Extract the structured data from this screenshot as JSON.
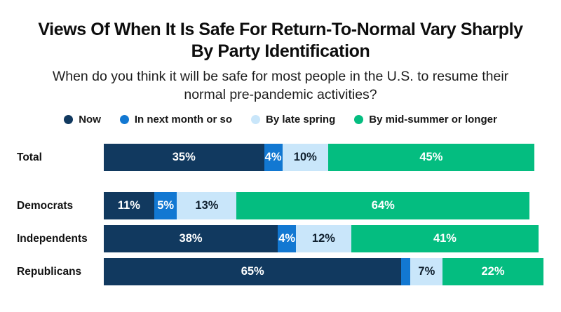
{
  "header": {
    "title_lines": [
      "Views Of When It Is Safe For Return-To-Normal Vary Sharply",
      "By Party Identification"
    ],
    "subtitle_lines": [
      "When do you think it will be safe for most people in the U.S. to resume their",
      "normal pre-pandemic activities?"
    ]
  },
  "colors": {
    "background": "#FFFFFF",
    "now": "#11395F",
    "next_month": "#1278D2",
    "late_spring": "#C9E6FA",
    "mid_summer": "#04BD80",
    "label_on_dark": "#FFFFFF",
    "label_on_light": "#10202E"
  },
  "legend": {
    "items": [
      {
        "label": "Now",
        "color": "#11395F"
      },
      {
        "label": "In next month or so",
        "color": "#1278D2"
      },
      {
        "label": "By late spring",
        "color": "#C9E6FA"
      },
      {
        "label": "By mid-summer or longer",
        "color": "#04BD80"
      }
    ]
  },
  "chart_data": {
    "type": "bar",
    "orientation": "horizontal",
    "stacked": true,
    "unit": "%",
    "axis_range": [
      0,
      100
    ],
    "grid": false,
    "legend_position": "top",
    "categories": [
      "Total",
      "Democrats",
      "Independents",
      "Republicans"
    ],
    "series": [
      {
        "name": "Now",
        "color": "#11395F",
        "label_color": "#FFFFFF",
        "values": [
          35,
          11,
          38,
          65
        ]
      },
      {
        "name": "In next month or so",
        "color": "#1278D2",
        "label_color": "#FFFFFF",
        "values": [
          4,
          5,
          4,
          2
        ]
      },
      {
        "name": "By late spring",
        "color": "#C9E6FA",
        "label_color": "#10202E",
        "values": [
          10,
          13,
          12,
          7
        ]
      },
      {
        "name": "By mid-summer or longer",
        "color": "#04BD80",
        "label_color": "#FFFFFF",
        "values": [
          45,
          64,
          41,
          22
        ]
      }
    ],
    "segment_labels": [
      [
        "35%",
        "4%",
        "10%",
        "45%"
      ],
      [
        "11%",
        "5%",
        "13%",
        "64%"
      ],
      [
        "38%",
        "4%",
        "12%",
        "41%"
      ],
      [
        "65%",
        "",
        "7%",
        "22%"
      ]
    ]
  }
}
